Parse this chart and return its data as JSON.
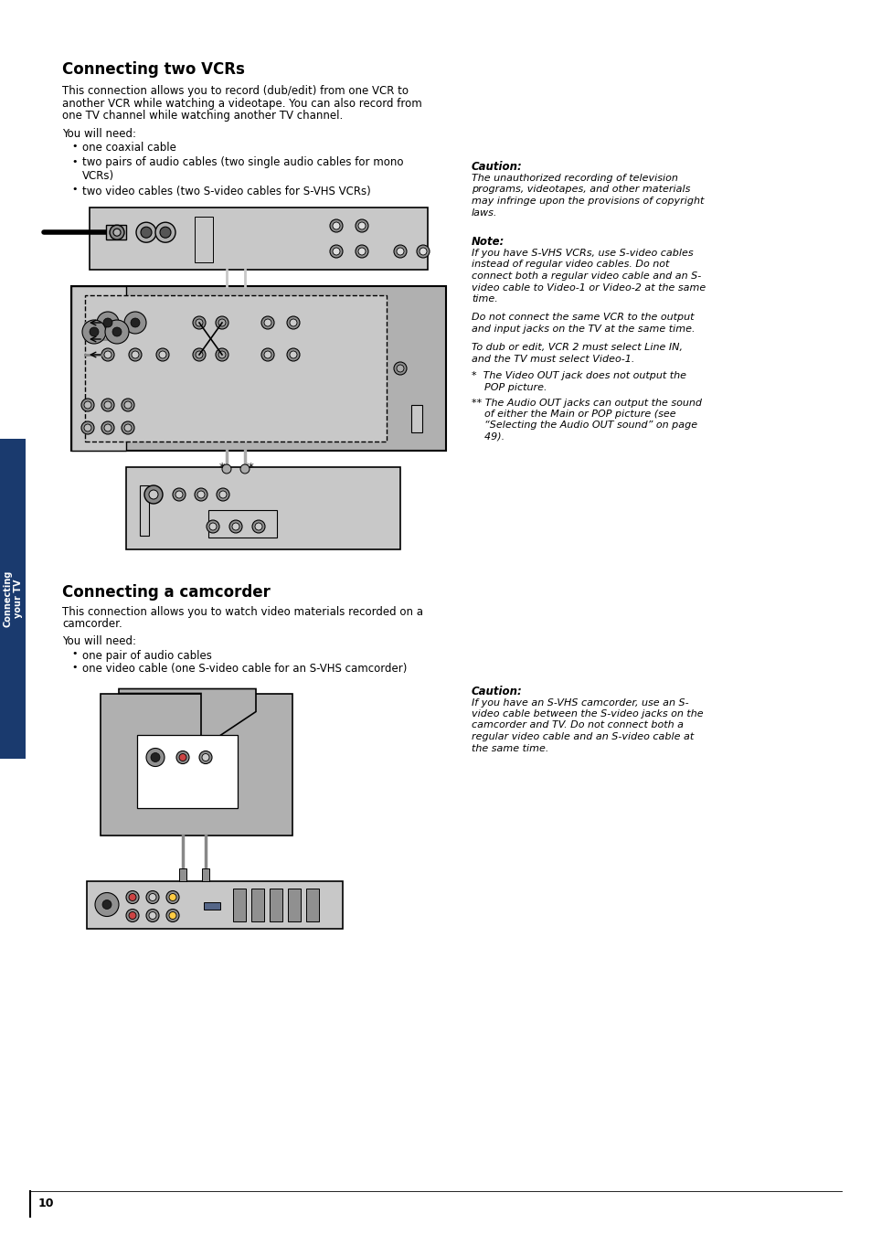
{
  "page_bg": "#ffffff",
  "sidebar_bg": "#1a3a6e",
  "sidebar_text": "Connecting\nyour TV",
  "page_number": "10",
  "section1_title": "Connecting two VCRs",
  "section1_body_lines": [
    "This connection allows you to record (dub/edit) from one VCR to",
    "another VCR while watching a videotape. You can also record from",
    "one TV channel while watching another TV channel."
  ],
  "section1_need_title": "You will need:",
  "section1_bullets": [
    "one coaxial cable",
    "two pairs of audio cables (two single audio cables for mono",
    "    VCRs)",
    "two video cables (two S-video cables for S-VHS VCRs)"
  ],
  "section1_bullet_indent": [
    false,
    false,
    true,
    false
  ],
  "caution1_title": "Caution:",
  "caution1_body": [
    "The unauthorized recording of television",
    "programs, videotapes, and other materials",
    "may infringe upon the provisions of copyright",
    "laws."
  ],
  "note1_title": "Note:",
  "note1_body": [
    "If you have S-VHS VCRs, use S-video cables",
    "instead of regular video cables. Do not",
    "connect both a regular video cable and an S-",
    "video cable to Video-1 or Video-2 at the same",
    "time.",
    "",
    "Do not connect the same VCR to the output",
    "and input jacks on the TV at the same time.",
    "",
    "To dub or edit, VCR 2 must select Line IN,",
    "and the TV must select Video-1."
  ],
  "note1_star1": [
    "*  The Video OUT jack does not output the",
    "    POP picture."
  ],
  "note1_star2": [
    "** The Audio OUT jacks can output the sound",
    "    of either the Main or POP picture (see",
    "    “Selecting the Audio OUT sound” on page",
    "    49)."
  ],
  "section2_title": "Connecting a camcorder",
  "section2_body": [
    "This connection allows you to watch video materials recorded on a",
    "camcorder."
  ],
  "section2_need_title": "You will need:",
  "section2_bullets": [
    "one pair of audio cables",
    "one video cable (one S-video cable for an S-VHS camcorder)"
  ],
  "caution2_title": "Caution:",
  "caution2_body": [
    "If you have an S-VHS camcorder, use an S-",
    "video cable between the S-video jacks on the",
    "camcorder and TV. Do not connect both a",
    "regular video cable and an S-video cable at",
    "the same time."
  ],
  "diag1_gray_light": "#c8c8c8",
  "diag1_gray_mid": "#b0b0b0",
  "diag1_gray_dark": "#909090",
  "black": "#000000",
  "white": "#ffffff"
}
